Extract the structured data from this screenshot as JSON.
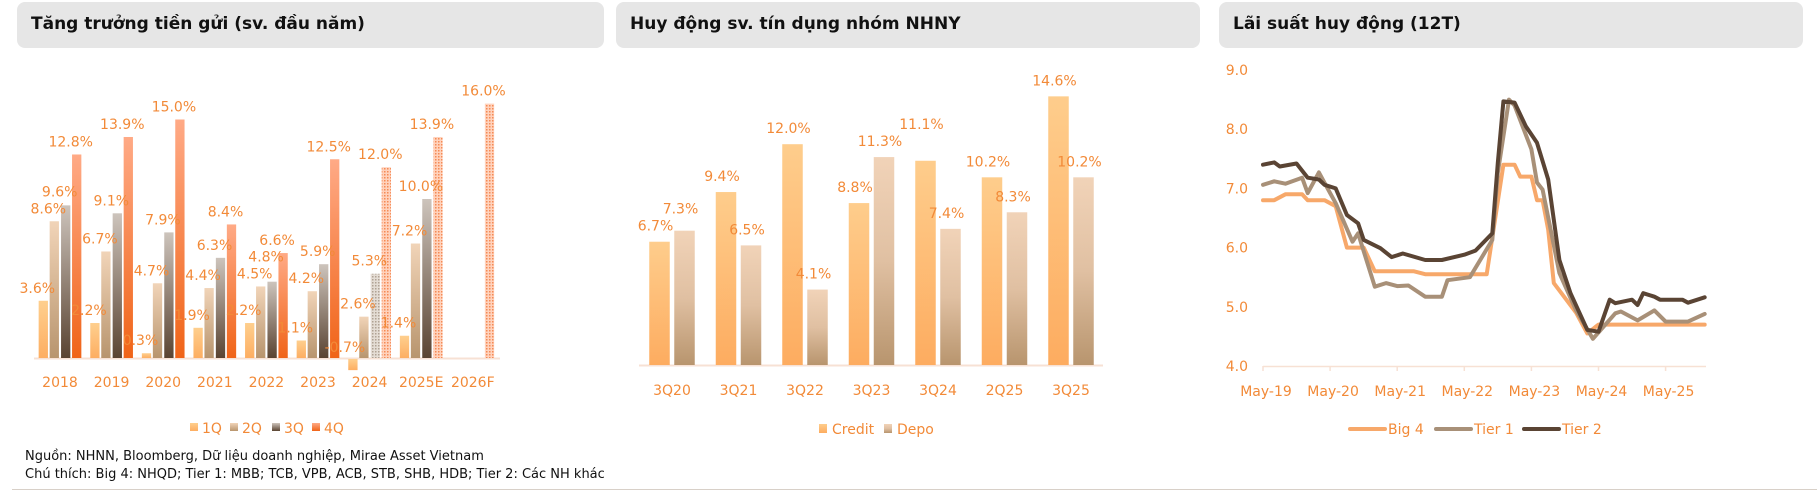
{
  "panels": {
    "deposit_growth_title": "Tăng trưởng tiền gửi (sv. đầu năm)",
    "credit_vs_deposit_title": "Huy động sv. tín dụng nhóm NHNY",
    "deposit_rate_title": "Lãi suất huy động (12T)"
  },
  "footnotes": {
    "source": "Nguồn: NHNN, Bloomberg, Dữ liệu doanh nghiệp, Mirae Asset Vietnam",
    "note": "Chú thích: Big 4: NHQD; Tier 1: MBB; TCB, VPB, ACB, STB, SHB, HDB; Tier 2: Các NH khác"
  },
  "chart_data": [
    {
      "type": "bar",
      "title": "Tăng trưởng tiền gửi (sv. đầu năm)",
      "categories": [
        "2018",
        "2019",
        "2020",
        "2021",
        "2022",
        "2023",
        "2024",
        "2025E",
        "2026F"
      ],
      "series": [
        {
          "name": "1Q",
          "values": [
            3.6,
            2.2,
            0.3,
            1.9,
            2.2,
            1.1,
            -0.7,
            1.4,
            null
          ],
          "color": "#FDB46E"
        },
        {
          "name": "2Q",
          "values": [
            8.6,
            6.7,
            4.7,
            4.4,
            4.5,
            4.2,
            2.6,
            7.2,
            null
          ],
          "color": "#D9B08A"
        },
        {
          "name": "3Q",
          "values": [
            9.6,
            9.1,
            7.9,
            6.3,
            4.8,
            5.9,
            5.3,
            10.0,
            null
          ],
          "color": "#8A7460"
        },
        {
          "name": "4Q",
          "values": [
            12.8,
            13.9,
            15.0,
            8.4,
            6.6,
            12.5,
            12.0,
            13.9,
            16.0
          ],
          "color": "#F47A3C"
        }
      ],
      "hatched": {
        "2024": [
          "3Q",
          "4Q"
        ],
        "2025E": [
          "4Q"
        ],
        "2026F": [
          "4Q"
        ]
      },
      "data_labels": [
        "3.6%",
        "8.6%",
        "9.6%",
        "12.8%",
        "2.2%",
        "6.7%",
        "9.1%",
        "13.9%",
        "0.3%",
        "4.7%",
        "7.9%",
        "15.0%",
        "1.9%",
        "4.4%",
        "6.3%",
        "8.4%",
        "2.2%",
        "4.5%",
        "4.8%",
        "6.6%",
        "1.1%",
        "4.2%",
        "5.9%",
        "12.5%",
        "-0.7%",
        "2.6%",
        "5.3%",
        "12.0%",
        "1.4%",
        "7.2%",
        "10.0%",
        "13.9%",
        "16.0%"
      ],
      "legend": "bottom",
      "grid": false,
      "value_format": "percent, 1 decimal"
    },
    {
      "type": "bar",
      "title": "Huy động sv. tín dụng nhóm NHNY",
      "categories": [
        "3Q20",
        "3Q21",
        "3Q22",
        "3Q23",
        "3Q24",
        "2Q25",
        "3Q25"
      ],
      "series": [
        {
          "name": "Credit",
          "values": [
            6.7,
            9.4,
            12.0,
            8.8,
            11.1,
            10.2,
            14.6
          ],
          "color": "#FDB46E"
        },
        {
          "name": "Depo",
          "values": [
            7.3,
            6.5,
            4.1,
            11.3,
            7.4,
            8.3,
            10.2
          ],
          "color": "#C9A382"
        }
      ],
      "legend": "bottom",
      "grid": false
    },
    {
      "type": "line",
      "title": "Lãi suất huy động (12T)",
      "x_tick_labels": [
        "May-19",
        "May-20",
        "May-21",
        "May-22",
        "May-23",
        "May-24",
        "May-25"
      ],
      "y_tick_labels": [
        "4.0",
        "5.0",
        "6.0",
        "7.0",
        "8.0",
        "9.0"
      ],
      "ylim": [
        4.0,
        9.0
      ],
      "xlim": [
        "2019-05",
        "2025-12"
      ],
      "legend": "bottom",
      "grid": false,
      "series": [
        {
          "name": "Big 4",
          "color": "#F7A86A",
          "points": [
            [
              "2019-05",
              6.8
            ],
            [
              "2019-07",
              6.8
            ],
            [
              "2019-09",
              6.9
            ],
            [
              "2019-12",
              6.9
            ],
            [
              "2020-01",
              6.8
            ],
            [
              "2020-04",
              6.8
            ],
            [
              "2020-06",
              6.7
            ],
            [
              "2020-08",
              6.0
            ],
            [
              "2020-11",
              6.0
            ],
            [
              "2021-01",
              5.6
            ],
            [
              "2021-08",
              5.6
            ],
            [
              "2021-10",
              5.55
            ],
            [
              "2022-09",
              5.55
            ],
            [
              "2022-12",
              7.4
            ],
            [
              "2023-02",
              7.4
            ],
            [
              "2023-03",
              7.2
            ],
            [
              "2023-05",
              7.2
            ],
            [
              "2023-06",
              6.8
            ],
            [
              "2023-07",
              6.8
            ],
            [
              "2023-08",
              6.3
            ],
            [
              "2023-09",
              5.4
            ],
            [
              "2024-01",
              4.9
            ],
            [
              "2024-03",
              4.55
            ],
            [
              "2024-05",
              4.7
            ],
            [
              "2025-12",
              4.7
            ]
          ]
        },
        {
          "name": "Tier 1",
          "color": "#A89078",
          "points": [
            [
              "2019-05",
              7.06
            ],
            [
              "2019-07",
              7.12
            ],
            [
              "2019-09",
              7.08
            ],
            [
              "2019-12",
              7.18
            ],
            [
              "2020-01",
              6.92
            ],
            [
              "2020-03",
              7.27
            ],
            [
              "2020-05",
              6.92
            ],
            [
              "2020-06",
              6.75
            ],
            [
              "2020-09",
              6.1
            ],
            [
              "2020-10",
              6.24
            ],
            [
              "2021-01",
              5.34
            ],
            [
              "2021-03",
              5.4
            ],
            [
              "2021-05",
              5.35
            ],
            [
              "2021-07",
              5.36
            ],
            [
              "2021-10",
              5.17
            ],
            [
              "2022-01",
              5.17
            ],
            [
              "2022-02",
              5.45
            ],
            [
              "2022-06",
              5.5
            ],
            [
              "2022-10",
              6.13
            ],
            [
              "2022-11",
              7.26
            ],
            [
              "2023-01",
              8.5
            ],
            [
              "2023-02",
              8.4
            ],
            [
              "2023-05",
              7.66
            ],
            [
              "2023-06",
              7.1
            ],
            [
              "2023-07",
              6.98
            ],
            [
              "2023-10",
              5.57
            ],
            [
              "2024-01",
              4.94
            ],
            [
              "2024-04",
              4.46
            ],
            [
              "2024-08",
              4.89
            ],
            [
              "2024-09",
              4.92
            ],
            [
              "2024-12",
              4.77
            ],
            [
              "2025-03",
              4.94
            ],
            [
              "2025-05",
              4.75
            ],
            [
              "2025-09",
              4.75
            ],
            [
              "2025-12",
              4.88
            ]
          ]
        },
        {
          "name": "Tier 2",
          "color": "#5A4434",
          "points": [
            [
              "2019-05",
              7.4
            ],
            [
              "2019-07",
              7.44
            ],
            [
              "2019-08",
              7.37
            ],
            [
              "2019-11",
              7.42
            ],
            [
              "2020-01",
              7.18
            ],
            [
              "2020-03",
              7.15
            ],
            [
              "2020-04",
              7.06
            ],
            [
              "2020-06",
              7.0
            ],
            [
              "2020-08",
              6.55
            ],
            [
              "2020-10",
              6.41
            ],
            [
              "2020-11",
              6.13
            ],
            [
              "2021-02",
              5.99
            ],
            [
              "2021-04",
              5.84
            ],
            [
              "2021-06",
              5.9
            ],
            [
              "2021-10",
              5.79
            ],
            [
              "2022-01",
              5.79
            ],
            [
              "2022-05",
              5.88
            ],
            [
              "2022-07",
              5.95
            ],
            [
              "2022-10",
              6.24
            ],
            [
              "2022-11",
              7.43
            ],
            [
              "2022-12",
              8.47
            ],
            [
              "2023-02",
              8.45
            ],
            [
              "2023-04",
              8.05
            ],
            [
              "2023-06",
              7.77
            ],
            [
              "2023-08",
              7.15
            ],
            [
              "2023-10",
              5.79
            ],
            [
              "2023-12",
              5.23
            ],
            [
              "2024-03",
              4.61
            ],
            [
              "2024-05",
              4.58
            ],
            [
              "2024-07",
              5.12
            ],
            [
              "2024-08",
              5.06
            ],
            [
              "2024-11",
              5.12
            ],
            [
              "2024-12",
              5.03
            ],
            [
              "2025-01",
              5.23
            ],
            [
              "2025-03",
              5.17
            ],
            [
              "2025-04",
              5.12
            ],
            [
              "2025-08",
              5.12
            ],
            [
              "2025-09",
              5.07
            ],
            [
              "2025-12",
              5.16
            ]
          ]
        }
      ]
    }
  ]
}
